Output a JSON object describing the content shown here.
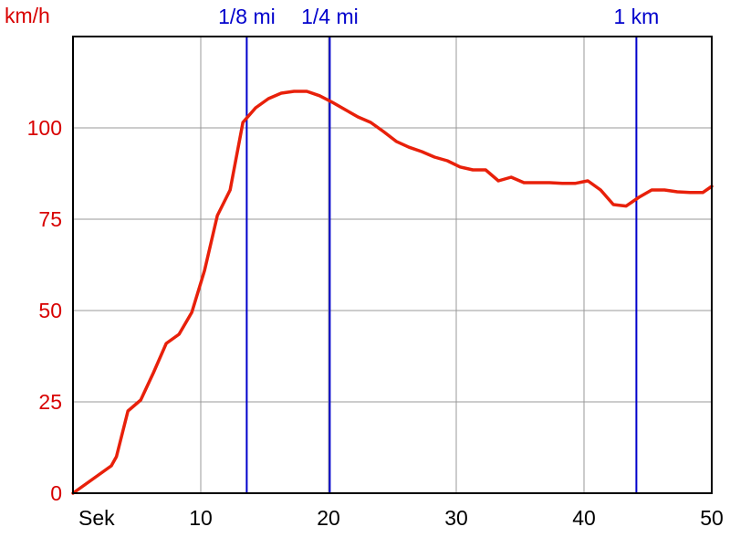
{
  "chart_data": {
    "type": "line",
    "ylabel": "km/h",
    "xlabel": "Sek",
    "xlim": [
      0,
      50
    ],
    "ylim": [
      0,
      125
    ],
    "x_ticks": [
      10,
      20,
      30,
      40,
      50
    ],
    "y_ticks": [
      0,
      25,
      50,
      75,
      100
    ],
    "grid": true,
    "series": [
      {
        "color": "#e8200a",
        "points": [
          [
            0,
            0
          ],
          [
            1.0,
            2.5
          ],
          [
            2.0,
            5.0
          ],
          [
            3.0,
            7.5
          ],
          [
            3.4,
            10.0
          ],
          [
            4.3,
            22.5
          ],
          [
            5.3,
            25.5
          ],
          [
            6.3,
            33.0
          ],
          [
            7.3,
            41.0
          ],
          [
            8.3,
            43.5
          ],
          [
            9.3,
            49.5
          ],
          [
            10.3,
            61.0
          ],
          [
            11.3,
            76.0
          ],
          [
            12.3,
            83.0
          ],
          [
            13.3,
            101.5
          ],
          [
            14.3,
            105.5
          ],
          [
            15.3,
            108.0
          ],
          [
            16.3,
            109.5
          ],
          [
            17.3,
            110.0
          ],
          [
            18.3,
            110.0
          ],
          [
            19.3,
            108.8
          ],
          [
            20.3,
            107.0
          ],
          [
            21.3,
            105.0
          ],
          [
            22.3,
            103.0
          ],
          [
            23.3,
            101.5
          ],
          [
            24.3,
            99.0
          ],
          [
            25.3,
            96.3
          ],
          [
            26.3,
            94.7
          ],
          [
            27.3,
            93.5
          ],
          [
            28.3,
            92.0
          ],
          [
            29.3,
            91.0
          ],
          [
            30.3,
            89.3
          ],
          [
            31.3,
            88.5
          ],
          [
            32.3,
            88.5
          ],
          [
            33.3,
            85.5
          ],
          [
            34.3,
            86.5
          ],
          [
            35.3,
            85.0
          ],
          [
            36.3,
            85.0
          ],
          [
            37.3,
            85.0
          ],
          [
            38.3,
            84.8
          ],
          [
            39.3,
            84.8
          ],
          [
            40.3,
            85.5
          ],
          [
            41.3,
            83.0
          ],
          [
            42.3,
            79.0
          ],
          [
            43.3,
            78.6
          ],
          [
            44.3,
            81.0
          ],
          [
            45.3,
            83.0
          ],
          [
            46.3,
            83.0
          ],
          [
            47.3,
            82.5
          ],
          [
            48.3,
            82.3
          ],
          [
            49.3,
            82.3
          ],
          [
            50.0,
            84.0
          ]
        ]
      }
    ],
    "markers": [
      {
        "label": "1/8 mi",
        "x": 13.6
      },
      {
        "label": "1/4 mi",
        "x": 20.1
      },
      {
        "label": "1 km",
        "x": 44.1
      }
    ],
    "colors": {
      "speed_line": "#e8200a",
      "y_axis_text": "#d80000",
      "markers": "#0000cc",
      "grid": "#999999",
      "axes": "#000000"
    }
  }
}
